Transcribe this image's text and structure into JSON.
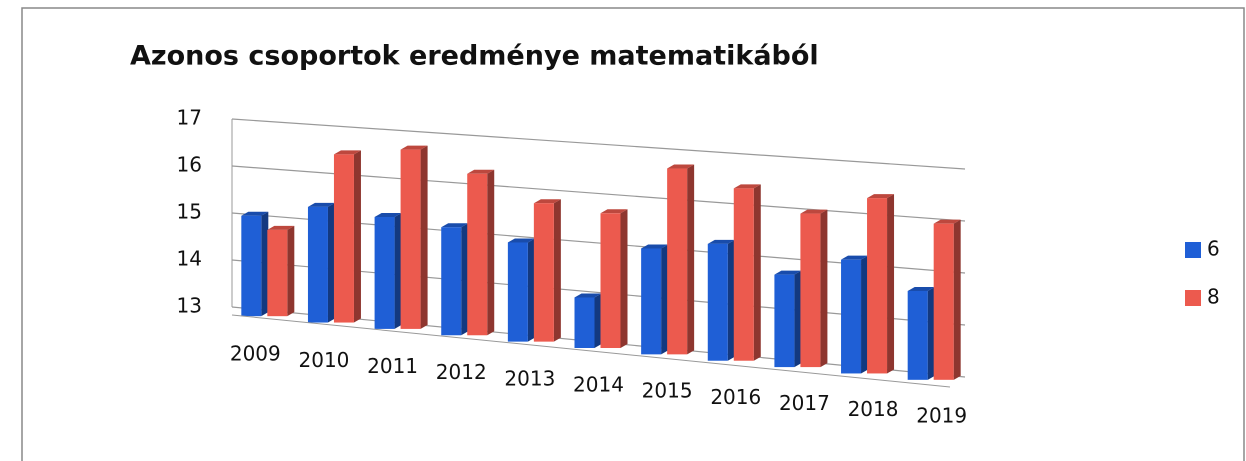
{
  "chart_data": {
    "type": "bar",
    "title": "Azonos csoportok eredménye matematikából",
    "categories": [
      "2009",
      "2010",
      "2011",
      "2012",
      "2013",
      "2014",
      "2015",
      "2016",
      "2017",
      "2018",
      "2019"
    ],
    "series": [
      {
        "name": "6",
        "color": "#1f5fd6",
        "values": [
          15.0,
          15.3,
          15.2,
          15.1,
          14.9,
          13.9,
          15.0,
          15.2,
          14.7,
          15.1,
          14.6
        ]
      },
      {
        "name": "8",
        "color": "#ec5a4e",
        "values": [
          14.7,
          16.4,
          16.6,
          16.2,
          15.7,
          15.6,
          16.6,
          16.3,
          15.9,
          16.3,
          15.9
        ]
      }
    ],
    "ylim": [
      13,
      17
    ],
    "yticks": [
      13,
      14,
      15,
      16,
      17
    ],
    "grid": true,
    "legend": "right"
  }
}
